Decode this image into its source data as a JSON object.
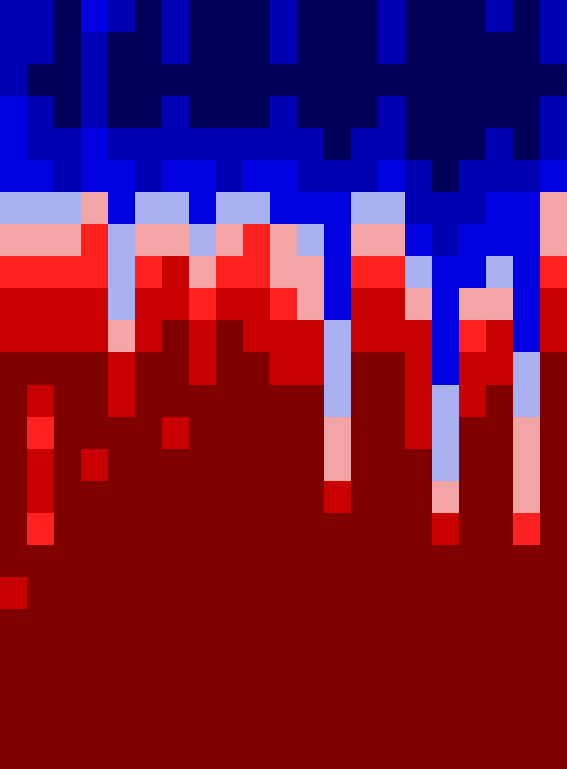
{
  "chart_data": {
    "type": "heatmap",
    "tick_labels": false,
    "zlim": [
      0,
      1
    ],
    "z": [
      [
        0.15,
        0.2,
        0.1,
        0.25,
        0.15,
        0.1,
        0.2,
        0.1,
        0.05,
        0.1,
        0.2,
        0.1,
        0.05,
        0.1,
        0.2,
        0.1,
        0.05,
        0.1,
        0.15,
        0.1,
        0.2
      ],
      [
        0.2,
        0.15,
        0.1,
        0.2,
        0.1,
        0.05,
        0.15,
        0.05,
        0.05,
        0.1,
        0.15,
        0.05,
        0.05,
        0.05,
        0.15,
        0.05,
        0.05,
        0.05,
        0.1,
        0.05,
        0.15
      ],
      [
        0.2,
        0.1,
        0.05,
        0.15,
        0.05,
        0.05,
        0.1,
        0.05,
        0.05,
        0.05,
        0.1,
        0.05,
        0.05,
        0.05,
        0.1,
        0.05,
        0.05,
        0.05,
        0.05,
        0.05,
        0.1
      ],
      [
        0.25,
        0.15,
        0.1,
        0.2,
        0.1,
        0.1,
        0.15,
        0.1,
        0.05,
        0.1,
        0.15,
        0.1,
        0.05,
        0.1,
        0.15,
        0.05,
        0.05,
        0.05,
        0.1,
        0.05,
        0.15
      ],
      [
        0.3,
        0.2,
        0.15,
        0.25,
        0.2,
        0.15,
        0.2,
        0.2,
        0.15,
        0.2,
        0.2,
        0.15,
        0.1,
        0.15,
        0.2,
        0.1,
        0.05,
        0.1,
        0.15,
        0.1,
        0.2
      ],
      [
        0.35,
        0.25,
        0.2,
        0.3,
        0.25,
        0.2,
        0.25,
        0.25,
        0.2,
        0.25,
        0.25,
        0.2,
        0.15,
        0.2,
        0.25,
        0.15,
        0.1,
        0.15,
        0.2,
        0.15,
        0.3
      ],
      [
        0.45,
        0.4,
        0.45,
        0.5,
        0.35,
        0.4,
        0.45,
        0.35,
        0.4,
        0.45,
        0.35,
        0.3,
        0.25,
        0.4,
        0.45,
        0.2,
        0.15,
        0.2,
        0.25,
        0.3,
        0.5
      ],
      [
        0.6,
        0.55,
        0.6,
        0.65,
        0.45,
        0.55,
        0.6,
        0.45,
        0.6,
        0.65,
        0.5,
        0.4,
        0.3,
        0.55,
        0.6,
        0.3,
        0.2,
        0.25,
        0.3,
        0.35,
        0.6
      ],
      [
        0.7,
        0.7,
        0.65,
        0.7,
        0.4,
        0.65,
        0.75,
        0.6,
        0.7,
        0.7,
        0.6,
        0.5,
        0.3,
        0.65,
        0.7,
        0.4,
        0.25,
        0.35,
        0.4,
        0.3,
        0.7
      ],
      [
        0.75,
        0.8,
        0.75,
        0.8,
        0.45,
        0.75,
        0.8,
        0.7,
        0.8,
        0.8,
        0.7,
        0.6,
        0.35,
        0.75,
        0.75,
        0.55,
        0.3,
        0.5,
        0.6,
        0.3,
        0.75
      ],
      [
        0.85,
        0.85,
        0.85,
        0.85,
        0.6,
        0.85,
        0.9,
        0.8,
        0.9,
        0.85,
        0.8,
        0.75,
        0.4,
        0.85,
        0.85,
        0.75,
        0.3,
        0.65,
        0.75,
        0.35,
        0.85
      ],
      [
        0.9,
        0.9,
        0.9,
        0.9,
        0.75,
        0.9,
        0.9,
        0.85,
        0.9,
        0.9,
        0.85,
        0.85,
        0.4,
        0.9,
        0.9,
        0.8,
        0.35,
        0.75,
        0.85,
        0.4,
        0.9
      ],
      [
        0.95,
        0.8,
        0.95,
        0.95,
        0.85,
        0.95,
        0.95,
        0.9,
        0.95,
        0.9,
        0.9,
        0.9,
        0.45,
        0.9,
        0.95,
        0.85,
        0.4,
        0.85,
        0.9,
        0.45,
        0.95
      ],
      [
        0.95,
        0.7,
        0.9,
        0.95,
        0.9,
        0.95,
        0.85,
        0.95,
        0.95,
        0.95,
        0.9,
        0.95,
        0.5,
        0.9,
        0.9,
        0.85,
        0.4,
        0.9,
        0.95,
        0.5,
        0.95
      ],
      [
        0.95,
        0.75,
        0.9,
        0.85,
        0.95,
        0.95,
        0.9,
        0.95,
        0.95,
        0.9,
        0.95,
        0.95,
        0.6,
        0.9,
        0.95,
        0.9,
        0.45,
        0.95,
        0.9,
        0.5,
        0.95
      ],
      [
        0.95,
        0.8,
        0.95,
        0.9,
        0.95,
        0.9,
        0.95,
        0.95,
        0.9,
        0.95,
        0.95,
        0.95,
        0.8,
        0.95,
        0.95,
        0.9,
        0.55,
        0.95,
        0.95,
        0.55,
        0.95
      ],
      [
        0.95,
        0.7,
        0.95,
        0.95,
        0.9,
        0.95,
        0.95,
        0.95,
        0.95,
        0.95,
        0.95,
        0.9,
        0.95,
        0.95,
        0.95,
        0.95,
        0.8,
        0.95,
        0.9,
        0.65,
        0.95
      ],
      [
        0.95,
        0.9,
        0.95,
        0.95,
        0.95,
        0.95,
        0.95,
        0.95,
        0.95,
        0.95,
        0.95,
        0.95,
        0.95,
        0.95,
        0.9,
        0.95,
        0.95,
        0.95,
        0.95,
        0.9,
        0.95
      ],
      [
        0.8,
        0.95,
        0.95,
        0.95,
        0.95,
        0.95,
        0.95,
        0.95,
        0.95,
        0.9,
        0.95,
        0.95,
        0.9,
        0.95,
        0.9,
        0.95,
        0.95,
        0.95,
        0.9,
        0.95,
        0.95
      ],
      [
        0.95,
        0.9,
        0.95,
        0.95,
        0.95,
        0.95,
        0.95,
        0.95,
        0.9,
        0.95,
        0.95,
        0.95,
        0.95,
        0.95,
        0.95,
        0.95,
        0.95,
        0.95,
        0.95,
        0.95,
        0.95
      ],
      [
        0.95,
        0.95,
        0.95,
        0.95,
        0.95,
        0.95,
        0.95,
        0.95,
        0.95,
        0.95,
        0.95,
        0.95,
        0.95,
        0.95,
        0.95,
        0.95,
        0.95,
        0.95,
        0.95,
        0.95,
        0.95
      ],
      [
        0.95,
        0.95,
        0.95,
        0.95,
        0.95,
        0.95,
        0.95,
        0.95,
        0.95,
        0.95,
        0.95,
        0.95,
        0.95,
        0.95,
        0.95,
        0.95,
        0.95,
        0.95,
        0.95,
        0.95,
        0.95
      ],
      [
        0.95,
        0.95,
        0.95,
        0.95,
        0.95,
        0.95,
        0.95,
        0.95,
        0.95,
        0.95,
        0.95,
        0.95,
        0.95,
        0.95,
        0.95,
        0.95,
        0.95,
        0.95,
        0.95,
        0.95,
        0.95
      ],
      [
        0.95,
        0.95,
        0.95,
        0.95,
        0.95,
        0.95,
        0.95,
        0.95,
        0.95,
        0.95,
        0.95,
        0.95,
        0.95,
        0.95,
        0.95,
        0.95,
        0.95,
        0.95,
        0.95,
        0.95,
        0.95
      ]
    ]
  }
}
